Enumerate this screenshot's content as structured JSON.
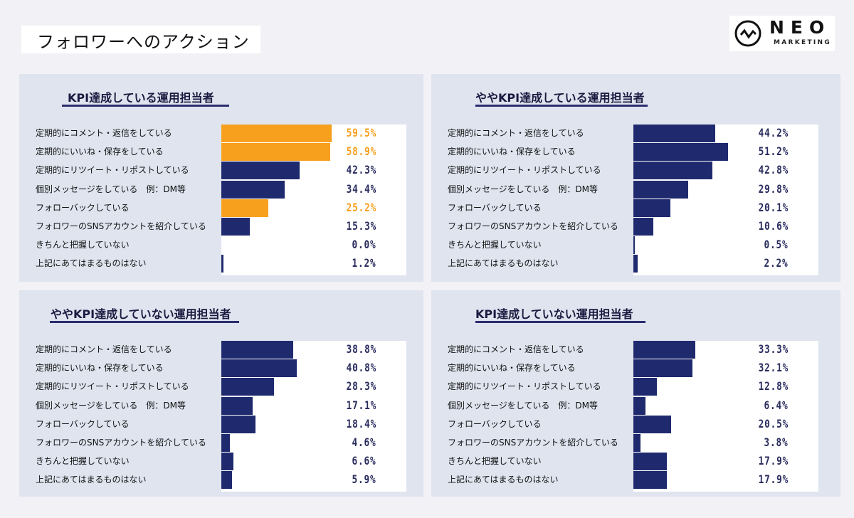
{
  "page_title": "フォロワーへのアクション",
  "logo": {
    "name": "NEO",
    "sub": "MARKETING"
  },
  "colors": {
    "highlight": "#f7a01e",
    "default": "#1f2a6e"
  },
  "chart_data": [
    {
      "type": "bar",
      "orientation": "horizontal",
      "title": "KPI達成している運用担当者",
      "categories": [
        "定期的にコメント・返信をしている",
        "定期的にいいね・保存をしている",
        "定期的にリツイート・リポストしている",
        "個別メッセージをしている　例：DM等",
        "フォローバックしている",
        "フォロワーのSNSアカウントを紹介している",
        "きちんと把握していない",
        "上記にあてはまるものはない"
      ],
      "values": [
        59.5,
        58.9,
        42.3,
        34.4,
        25.2,
        15.3,
        0.0,
        1.2
      ],
      "labels": [
        "59.5%",
        "58.9%",
        "42.3%",
        "34.4%",
        "25.2%",
        "15.3%",
        "0.0%",
        "1.2%"
      ],
      "highlight": [
        0,
        1,
        4
      ]
    },
    {
      "type": "bar",
      "orientation": "horizontal",
      "title": "ややKPI達成している運用担当者",
      "categories": [
        "定期的にコメント・返信をしている",
        "定期的にいいね・保存をしている",
        "定期的にリツイート・リポストしている",
        "個別メッセージをしている　例：DM等",
        "フォローバックしている",
        "フォロワーのSNSアカウントを紹介している",
        "きちんと把握していない",
        "上記にあてはまるものはない"
      ],
      "values": [
        44.2,
        51.2,
        42.8,
        29.8,
        20.1,
        10.6,
        0.5,
        2.2
      ],
      "labels": [
        "44.2%",
        "51.2%",
        "42.8%",
        "29.8%",
        "20.1%",
        "10.6%",
        "0.5%",
        "2.2%"
      ],
      "highlight": []
    },
    {
      "type": "bar",
      "orientation": "horizontal",
      "title": "ややKPI達成していない運用担当者",
      "categories": [
        "定期的にコメント・返信をしている",
        "定期的にいいね・保存をしている",
        "定期的にリツイート・リポストしている",
        "個別メッセージをしている　例：DM等",
        "フォローバックしている",
        "フォロワーのSNSアカウントを紹介している",
        "きちんと把握していない",
        "上記にあてはまるものはない"
      ],
      "values": [
        38.8,
        40.8,
        28.3,
        17.1,
        18.4,
        4.6,
        6.6,
        5.9
      ],
      "labels": [
        "38.8%",
        "40.8%",
        "28.3%",
        "17.1%",
        "18.4%",
        "4.6%",
        "6.6%",
        "5.9%"
      ],
      "highlight": []
    },
    {
      "type": "bar",
      "orientation": "horizontal",
      "title": "KPI達成していない運用担当者",
      "categories": [
        "定期的にコメント・返信をしている",
        "定期的にいいね・保存をしている",
        "定期的にリツイート・リポストしている",
        "個別メッセージをしている　例：DM等",
        "フォローバックしている",
        "フォロワーのSNSアカウントを紹介している",
        "きちんと把握していない",
        "上記にあてはまるものはない"
      ],
      "values": [
        33.3,
        32.1,
        12.8,
        6.4,
        20.5,
        3.8,
        17.9,
        17.9
      ],
      "labels": [
        "33.3%",
        "32.1%",
        "12.8%",
        "6.4%",
        "20.5%",
        "3.8%",
        "17.9%",
        "17.9%"
      ],
      "highlight": []
    }
  ]
}
